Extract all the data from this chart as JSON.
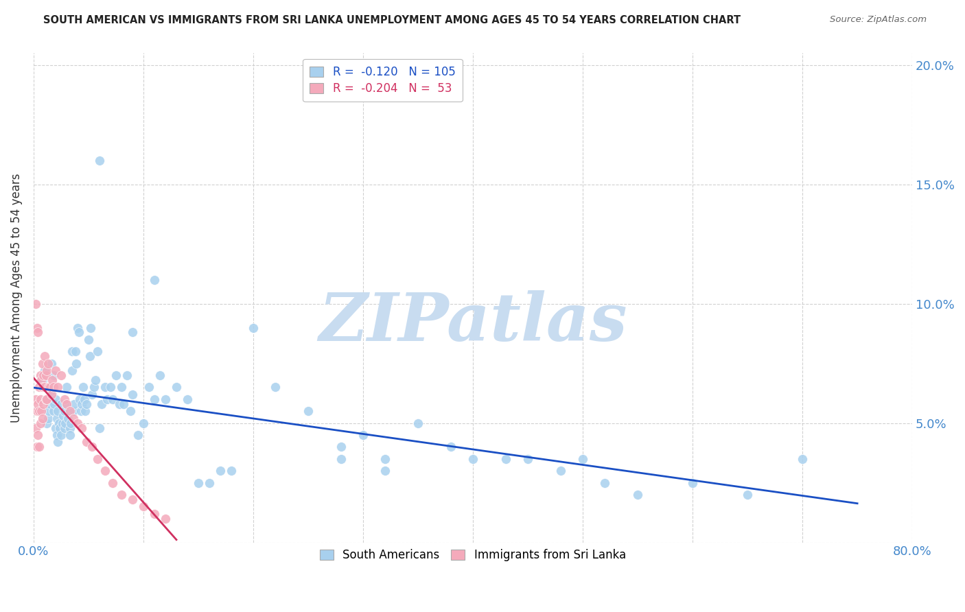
{
  "title": "SOUTH AMERICAN VS IMMIGRANTS FROM SRI LANKA UNEMPLOYMENT AMONG AGES 45 TO 54 YEARS CORRELATION CHART",
  "source": "Source: ZipAtlas.com",
  "ylabel": "Unemployment Among Ages 45 to 54 years",
  "xlim": [
    0.0,
    0.8
  ],
  "ylim": [
    0.0,
    0.205
  ],
  "xticks": [
    0.0,
    0.1,
    0.2,
    0.3,
    0.4,
    0.5,
    0.6,
    0.7,
    0.8
  ],
  "xticklabels": [
    "0.0%",
    "",
    "",
    "",
    "",
    "",
    "",
    "",
    "80.0%"
  ],
  "yticks": [
    0.0,
    0.05,
    0.1,
    0.15,
    0.2
  ],
  "yticklabels_right": [
    "",
    "5.0%",
    "10.0%",
    "15.0%",
    "20.0%"
  ],
  "legend_R1_val": "-0.120",
  "legend_N1_val": "105",
  "legend_R2_val": "-0.204",
  "legend_N2_val": " 53",
  "color_blue": "#A8D0EE",
  "color_pink": "#F4AABB",
  "color_blue_line": "#1A4FC4",
  "color_pink_line": "#D03060",
  "color_axis_text": "#4488CC",
  "watermark_text": "ZIPatlas",
  "watermark_color": "#C8DCF0",
  "background_color": "#FFFFFF",
  "south_americans_x": [
    0.008,
    0.01,
    0.012,
    0.012,
    0.013,
    0.014,
    0.015,
    0.015,
    0.016,
    0.017,
    0.018,
    0.018,
    0.019,
    0.02,
    0.02,
    0.021,
    0.021,
    0.022,
    0.022,
    0.023,
    0.024,
    0.025,
    0.025,
    0.026,
    0.027,
    0.028,
    0.028,
    0.029,
    0.03,
    0.03,
    0.031,
    0.032,
    0.033,
    0.033,
    0.034,
    0.035,
    0.035,
    0.036,
    0.037,
    0.038,
    0.039,
    0.04,
    0.041,
    0.042,
    0.043,
    0.044,
    0.045,
    0.046,
    0.047,
    0.048,
    0.05,
    0.051,
    0.052,
    0.053,
    0.055,
    0.056,
    0.058,
    0.06,
    0.062,
    0.065,
    0.067,
    0.07,
    0.072,
    0.075,
    0.078,
    0.08,
    0.082,
    0.085,
    0.088,
    0.09,
    0.095,
    0.1,
    0.105,
    0.11,
    0.115,
    0.12,
    0.13,
    0.14,
    0.15,
    0.16,
    0.17,
    0.18,
    0.2,
    0.22,
    0.25,
    0.28,
    0.3,
    0.32,
    0.35,
    0.38,
    0.4,
    0.43,
    0.45,
    0.48,
    0.5,
    0.52,
    0.55,
    0.6,
    0.65,
    0.7,
    0.28,
    0.32,
    0.06,
    0.09,
    0.11
  ],
  "south_americans_y": [
    0.068,
    0.072,
    0.06,
    0.05,
    0.052,
    0.055,
    0.065,
    0.058,
    0.075,
    0.062,
    0.07,
    0.055,
    0.058,
    0.06,
    0.048,
    0.052,
    0.045,
    0.055,
    0.042,
    0.05,
    0.048,
    0.058,
    0.045,
    0.05,
    0.053,
    0.055,
    0.048,
    0.05,
    0.065,
    0.058,
    0.052,
    0.055,
    0.048,
    0.045,
    0.05,
    0.08,
    0.072,
    0.055,
    0.058,
    0.08,
    0.075,
    0.09,
    0.088,
    0.06,
    0.055,
    0.058,
    0.065,
    0.06,
    0.055,
    0.058,
    0.085,
    0.078,
    0.09,
    0.062,
    0.065,
    0.068,
    0.08,
    0.16,
    0.058,
    0.065,
    0.06,
    0.065,
    0.06,
    0.07,
    0.058,
    0.065,
    0.058,
    0.07,
    0.055,
    0.062,
    0.045,
    0.05,
    0.065,
    0.06,
    0.07,
    0.06,
    0.065,
    0.06,
    0.025,
    0.025,
    0.03,
    0.03,
    0.09,
    0.065,
    0.055,
    0.04,
    0.045,
    0.035,
    0.05,
    0.04,
    0.035,
    0.035,
    0.035,
    0.03,
    0.035,
    0.025,
    0.02,
    0.025,
    0.02,
    0.035,
    0.035,
    0.03,
    0.048,
    0.088,
    0.11
  ],
  "sri_lanka_x": [
    0.002,
    0.002,
    0.003,
    0.003,
    0.004,
    0.004,
    0.005,
    0.005,
    0.005,
    0.006,
    0.006,
    0.006,
    0.007,
    0.007,
    0.008,
    0.008,
    0.008,
    0.009,
    0.009,
    0.01,
    0.01,
    0.011,
    0.011,
    0.012,
    0.012,
    0.013,
    0.014,
    0.015,
    0.016,
    0.017,
    0.018,
    0.02,
    0.022,
    0.025,
    0.028,
    0.03,
    0.033,
    0.036,
    0.04,
    0.044,
    0.048,
    0.053,
    0.058,
    0.065,
    0.072,
    0.08,
    0.09,
    0.1,
    0.11,
    0.12,
    0.002,
    0.003,
    0.004
  ],
  "sri_lanka_y": [
    0.06,
    0.048,
    0.055,
    0.04,
    0.058,
    0.045,
    0.065,
    0.055,
    0.04,
    0.07,
    0.06,
    0.05,
    0.068,
    0.055,
    0.075,
    0.065,
    0.052,
    0.07,
    0.058,
    0.078,
    0.065,
    0.07,
    0.06,
    0.072,
    0.06,
    0.075,
    0.065,
    0.065,
    0.062,
    0.068,
    0.065,
    0.072,
    0.065,
    0.07,
    0.06,
    0.058,
    0.055,
    0.052,
    0.05,
    0.048,
    0.042,
    0.04,
    0.035,
    0.03,
    0.025,
    0.02,
    0.018,
    0.015,
    0.012,
    0.01,
    0.1,
    0.09,
    0.088
  ]
}
